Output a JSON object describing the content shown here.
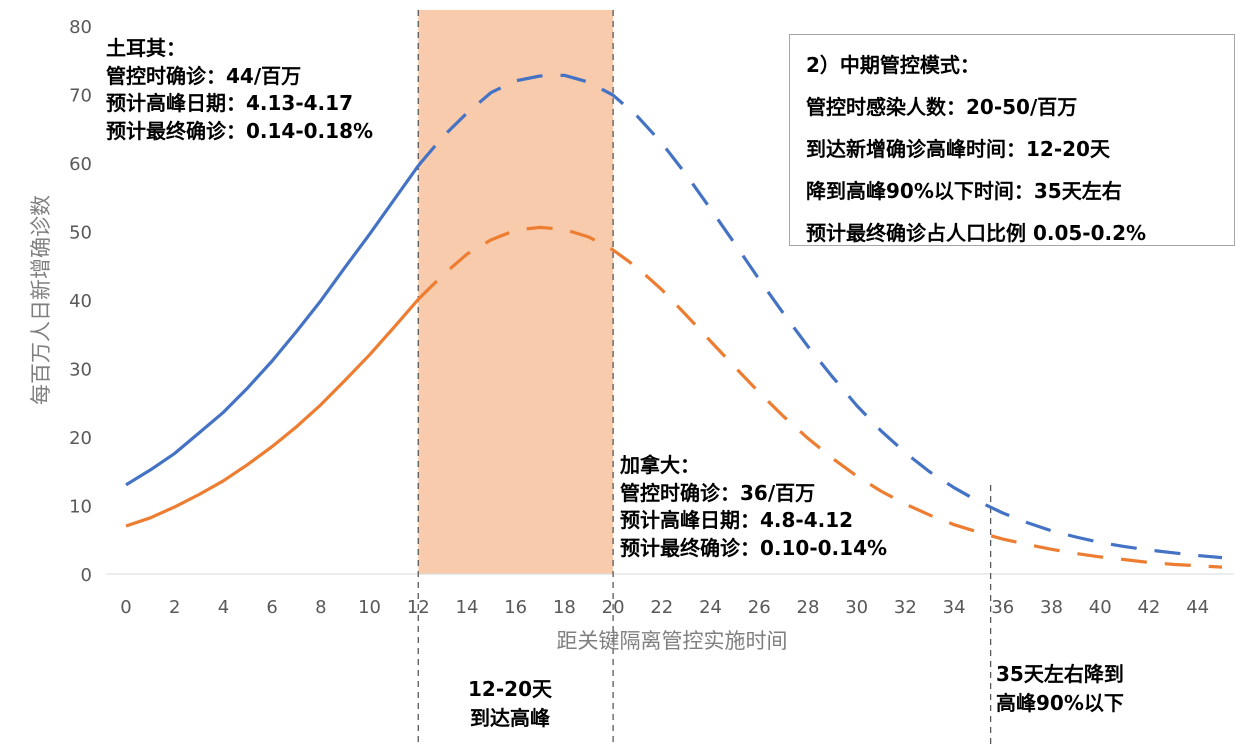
{
  "chart_data": {
    "type": "line",
    "xlabel": "距关键隔离管控实施时间",
    "ylabel": "每百万人日新增确诊数",
    "xlim": [
      0,
      45
    ],
    "ylim": [
      0,
      80
    ],
    "x_ticks": [
      0,
      2,
      4,
      6,
      8,
      10,
      12,
      14,
      16,
      18,
      20,
      22,
      24,
      26,
      28,
      30,
      32,
      34,
      36,
      38,
      40,
      42,
      44
    ],
    "y_ticks": [
      0,
      10,
      20,
      30,
      40,
      50,
      60,
      70,
      80
    ],
    "grid": false,
    "legend": "none",
    "highlight_range": [
      12,
      20
    ],
    "vertical_markers": [
      12,
      20,
      35.5
    ],
    "series": [
      {
        "color": "#4472C4",
        "x": [
          0,
          1,
          2,
          3,
          4,
          5,
          6,
          7,
          8,
          9,
          10,
          11,
          12,
          13,
          14,
          15,
          16,
          17,
          18,
          19,
          20,
          21,
          22,
          23,
          24,
          25,
          26,
          27,
          28,
          29,
          30,
          31,
          32,
          33,
          34,
          35,
          36,
          37,
          38,
          39,
          40,
          41,
          42,
          43,
          44,
          45
        ],
        "values": [
          13,
          15.2,
          17.6,
          20.6,
          23.6,
          27.2,
          31.1,
          35.4,
          39.9,
          44.8,
          49.6,
          54.6,
          59.6,
          63.8,
          67.3,
          70.3,
          72.0,
          72.7,
          72.8,
          71.8,
          69.9,
          66.8,
          62.9,
          58.3,
          53.3,
          48.2,
          43.0,
          38.0,
          33.2,
          28.8,
          24.6,
          20.9,
          17.7,
          14.9,
          12.6,
          10.6,
          8.9,
          7.5,
          6.3,
          5.4,
          4.6,
          4.0,
          3.5,
          3.1,
          2.7,
          2.4
        ],
        "solid_until": 12
      },
      {
        "color": "#ED7D31",
        "x": [
          0,
          1,
          2,
          3,
          4,
          5,
          6,
          7,
          8,
          9,
          10,
          11,
          12,
          13,
          14,
          15,
          16,
          17,
          18,
          19,
          20,
          21,
          22,
          23,
          24,
          25,
          26,
          27,
          28,
          29,
          30,
          31,
          32,
          33,
          34,
          35,
          36,
          37,
          38,
          39,
          40,
          41,
          42,
          43,
          44,
          45
        ],
        "values": [
          7,
          8.2,
          9.8,
          11.6,
          13.6,
          16.0,
          18.6,
          21.5,
          24.7,
          28.3,
          32.0,
          36.0,
          40.1,
          43.6,
          46.7,
          48.8,
          50.2,
          50.6,
          50.3,
          49.2,
          47.3,
          44.7,
          41.5,
          37.8,
          34.0,
          30.2,
          26.5,
          23.0,
          19.8,
          16.9,
          14.3,
          12.1,
          10.2,
          8.6,
          7.2,
          6.1,
          5.1,
          4.3,
          3.6,
          3.0,
          2.5,
          2.1,
          1.7,
          1.4,
          1.2,
          1.0
        ],
        "solid_until": 12
      }
    ]
  },
  "annotations": {
    "turkey": [
      "土耳其：",
      "管控时确诊：44/百万",
      "预计高峰日期：4.13-4.17",
      "预计最终确诊：0.14-0.18%"
    ],
    "canada": [
      "加拿大：",
      "管控时确诊：36/百万",
      "预计高峰日期：4.8-4.12",
      "预计最终确诊：0.10-0.14%"
    ],
    "box": [
      "2）中期管控模式：",
      "管控时感染人数：20-50/百万",
      "到达新增确诊高峰时间：12-20天",
      "降到高峰90%以下时间：35天左右",
      "预计最终确诊占人口比例 0.05-0.2%"
    ],
    "peak_window": [
      "12-20天",
      "到达高峰"
    ],
    "decline": [
      "35天左右降到",
      "高峰90%以下"
    ]
  },
  "colors": {
    "highlight_fill": "#F8CBAD",
    "marker_line": "#595959",
    "axis_line": "#d9d9d9"
  }
}
